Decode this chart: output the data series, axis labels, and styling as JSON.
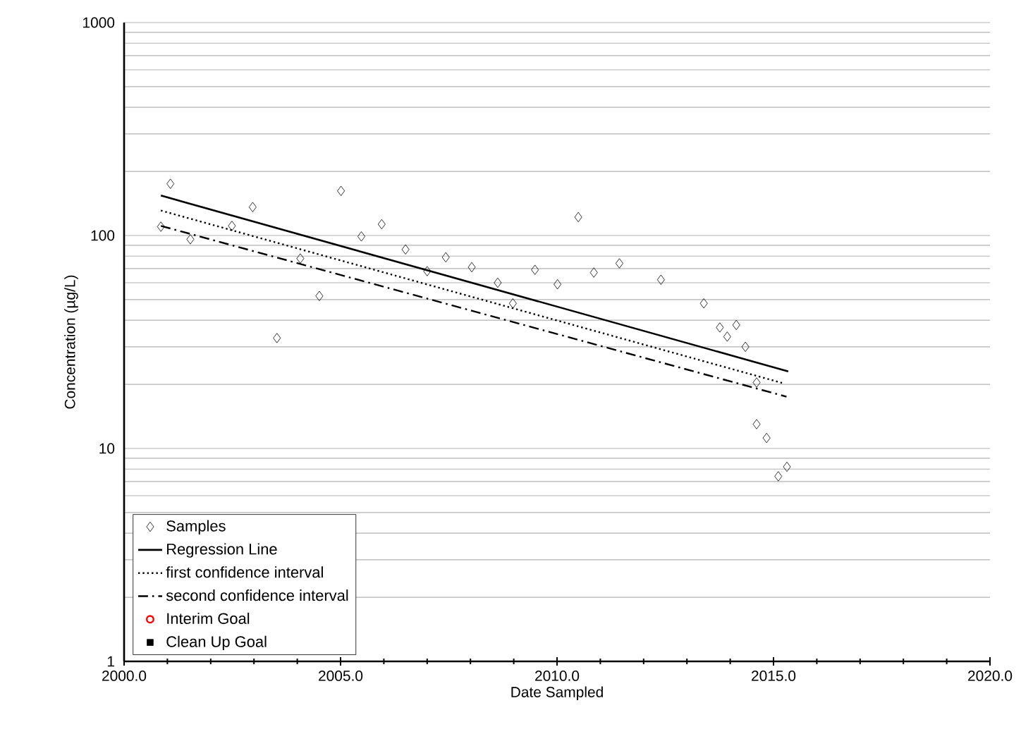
{
  "chart_data": {
    "type": "scatter",
    "xlabel": "Date Sampled",
    "ylabel": "Concentration (µg/L)",
    "xlim": [
      2000,
      2020
    ],
    "ylim": [
      1,
      1000
    ],
    "xticks": [
      {
        "value": 2000,
        "label": "2000.0"
      },
      {
        "value": 2005,
        "label": "2005.0"
      },
      {
        "value": 2010,
        "label": "2010.0"
      },
      {
        "value": 2015,
        "label": "2015.0"
      },
      {
        "value": 2020,
        "label": "2020.0"
      }
    ],
    "yticks": [
      1,
      10,
      100,
      1000
    ],
    "log": "y",
    "grid": "y",
    "legend": "bottom left",
    "series": [
      {
        "name": "Samples",
        "marker": "diamond",
        "color": "#000000",
        "x": [
          2000.85,
          2001.07,
          2001.53,
          2002.49,
          2002.97,
          2003.53,
          2004.07,
          2004.51,
          2005.01,
          2005.48,
          2005.95,
          2006.5,
          2007.0,
          2007.43,
          2008.03,
          2008.63,
          2008.98,
          2009.49,
          2010.01,
          2010.49,
          2010.85,
          2011.44,
          2012.4,
          2013.39,
          2013.76,
          2013.93,
          2014.14,
          2014.35,
          2014.61,
          2014.61,
          2014.84,
          2015.11,
          2015.31
        ],
        "values": [
          110,
          175,
          96,
          111,
          136,
          33,
          78,
          52,
          162,
          99,
          113,
          86,
          68,
          79,
          71,
          60,
          48,
          69,
          59,
          122,
          67,
          74,
          62,
          48,
          37,
          33.5,
          38,
          30,
          20.4,
          13,
          11.2,
          7.4,
          8.2
        ]
      },
      {
        "name": "Regression Line",
        "type": "line",
        "line_style": "solid",
        "color": "#000000",
        "x": [
          2000.85,
          2015.34
        ],
        "values": [
          154,
          23
        ]
      },
      {
        "name": "first confidence interval",
        "type": "line",
        "line_style": "dotted",
        "color": "#000000",
        "x": [
          2000.85,
          2015.2
        ],
        "values": [
          131,
          20.3
        ]
      },
      {
        "name": "second confidence interval",
        "type": "line",
        "line_style": "dashed",
        "color": "#000000",
        "x": [
          2000.85,
          2015.3
        ],
        "values": [
          111,
          17.5
        ]
      },
      {
        "name": "Interim Goal",
        "marker": "circle",
        "color": "#ff0000"
      },
      {
        "name": "Clean Up Goal",
        "marker": "square",
        "color": "#000000"
      }
    ]
  }
}
